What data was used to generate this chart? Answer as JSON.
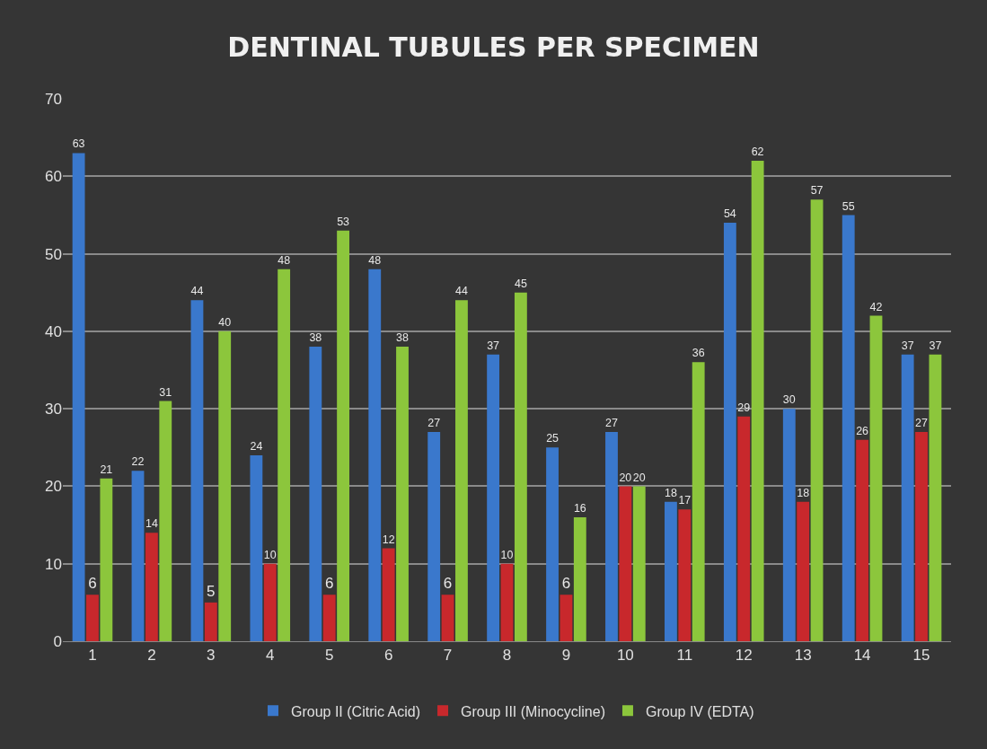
{
  "chart_data": {
    "type": "bar",
    "title": "DENTINAL TUBULES PER SPECIMEN",
    "categories": [
      "1",
      "2",
      "3",
      "4",
      "5",
      "6",
      "7",
      "8",
      "9",
      "10",
      "11",
      "12",
      "13",
      "14",
      "15"
    ],
    "series": [
      {
        "name": "Group II (Citric Acid)",
        "color": "#3a78cc",
        "values": [
          63,
          22,
          44,
          24,
          38,
          48,
          27,
          37,
          25,
          27,
          18,
          54,
          30,
          55,
          37
        ]
      },
      {
        "name": "Group III (Minocycline)",
        "color": "#c8282c",
        "values": [
          6,
          14,
          5,
          10,
          6,
          12,
          6,
          10,
          6,
          20,
          17,
          29,
          18,
          26,
          27
        ]
      },
      {
        "name": "Group IV (EDTA)",
        "color": "#8cc63c",
        "values": [
          21,
          31,
          40,
          48,
          53,
          38,
          44,
          45,
          16,
          20,
          36,
          62,
          57,
          42,
          37
        ]
      }
    ],
    "ylim": [
      0,
      70
    ],
    "yticks": [
      0,
      10,
      20,
      30,
      40,
      50,
      60,
      70
    ],
    "grid": "y",
    "legend": "bottom",
    "data_labels": true
  }
}
